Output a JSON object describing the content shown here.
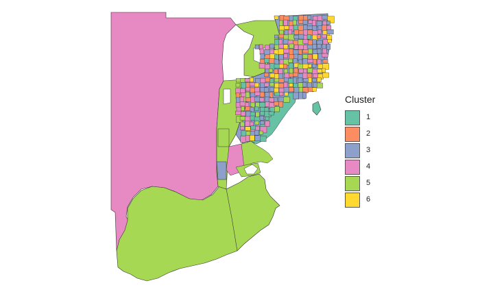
{
  "legend": {
    "title": "Cluster",
    "items": [
      {
        "label": "1",
        "color": "#66c2a5"
      },
      {
        "label": "2",
        "color": "#fc8d62"
      },
      {
        "label": "3",
        "color": "#8da0cb"
      },
      {
        "label": "4",
        "color": "#e78ac3"
      },
      {
        "label": "5",
        "color": "#a6d854"
      },
      {
        "label": "6",
        "color": "#ffd92f"
      }
    ]
  }
}
